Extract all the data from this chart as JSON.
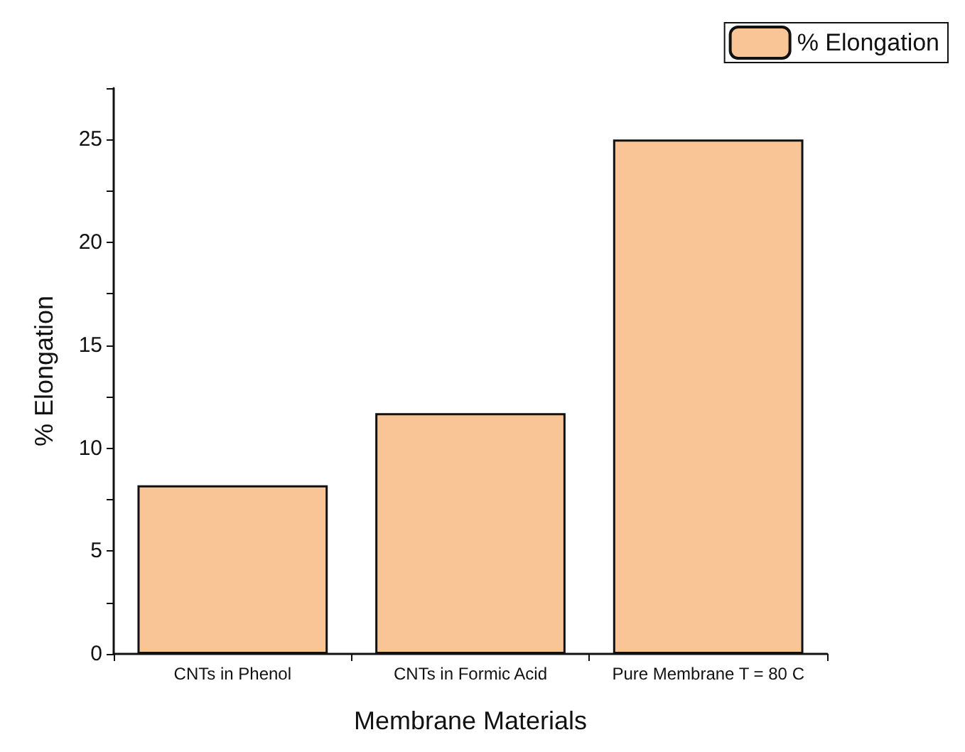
{
  "chart_data": {
    "type": "bar",
    "xlabel": "Membrane Materials",
    "ylabel": "% Elongation",
    "categories": [
      "CNTs in Phenol",
      "CNTs in Formic Acid",
      "Pure Membrane T = 80 C"
    ],
    "series": [
      {
        "name": "% Elongation",
        "color": "#f9c597",
        "values": [
          8.2,
          11.7,
          25
        ]
      }
    ],
    "ylim": [
      0,
      27.5
    ],
    "yticks": [
      0,
      {
        "value": 2.5,
        "label": null
      },
      5,
      {
        "value": 7.5,
        "label": null
      },
      10,
      {
        "value": 12.5,
        "label": null
      },
      15,
      {
        "value": 17.5,
        "label": null
      },
      20,
      {
        "value": 22.5,
        "label": null
      },
      25,
      {
        "value": 27.5,
        "label": null
      }
    ],
    "grid": false,
    "legend": "top right"
  }
}
